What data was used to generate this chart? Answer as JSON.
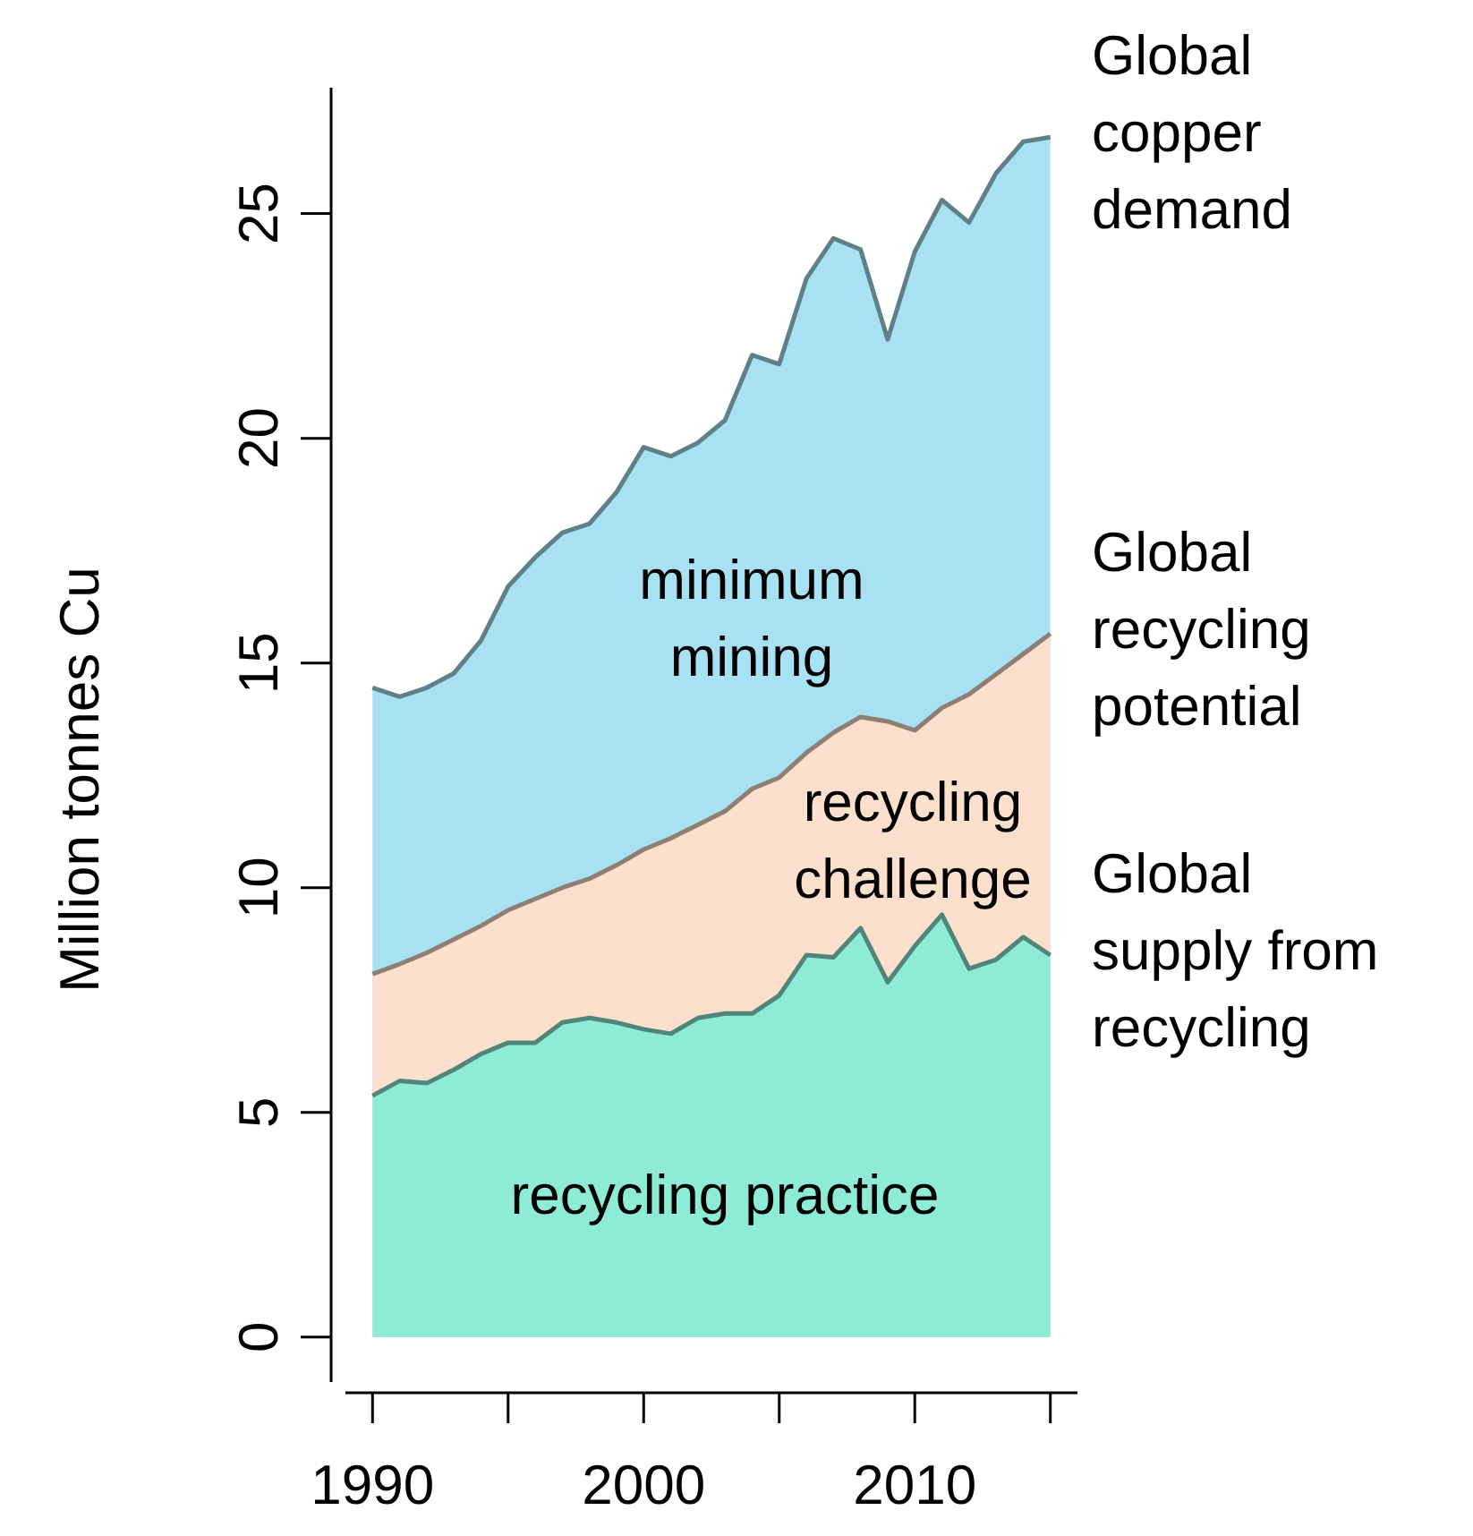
{
  "chart_data": {
    "type": "area",
    "ylabel": "Million tonnes Cu",
    "x": [
      1990,
      1991,
      1992,
      1993,
      1994,
      1995,
      1996,
      1997,
      1998,
      1999,
      2000,
      2001,
      2002,
      2003,
      2004,
      2005,
      2006,
      2007,
      2008,
      2009,
      2010,
      2011,
      2012,
      2013,
      2014,
      2015
    ],
    "xlim": [
      1989,
      2016
    ],
    "xticks": [
      1990,
      2000,
      2010
    ],
    "ylim": [
      -1,
      27.8
    ],
    "yticks": [
      0,
      5,
      10,
      15,
      20,
      25
    ],
    "grid": false,
    "series": [
      {
        "name": "Global copper demand",
        "color": "#a8e2f2",
        "values": [
          14.45,
          14.25,
          14.45,
          14.77,
          15.5,
          16.7,
          17.35,
          17.9,
          18.1,
          18.8,
          19.8,
          19.6,
          19.9,
          20.4,
          21.85,
          21.65,
          23.55,
          24.45,
          24.2,
          22.2,
          24.15,
          25.3,
          24.8,
          25.9,
          26.6,
          26.7
        ]
      },
      {
        "name": "Global recycling potential",
        "color": "#fce0cd",
        "values": [
          8.08,
          8.3,
          8.55,
          8.85,
          9.15,
          9.5,
          9.75,
          10.0,
          10.2,
          10.5,
          10.85,
          11.1,
          11.4,
          11.7,
          12.2,
          12.45,
          13.0,
          13.45,
          13.8,
          13.7,
          13.5,
          14.0,
          14.3,
          14.75,
          15.2,
          15.65
        ]
      },
      {
        "name": "Global supply from recycling",
        "color": "#8eecd6",
        "values": [
          5.37,
          5.7,
          5.65,
          5.95,
          6.3,
          6.55,
          6.55,
          7.0,
          7.1,
          7.0,
          6.85,
          6.75,
          7.1,
          7.2,
          7.2,
          7.6,
          8.5,
          8.45,
          9.1,
          7.9,
          8.7,
          9.4,
          8.2,
          8.4,
          8.9,
          8.5
        ]
      }
    ],
    "annotations": [
      "minimum\nmining",
      "recycling\nchallenge",
      "recycling practice"
    ]
  }
}
